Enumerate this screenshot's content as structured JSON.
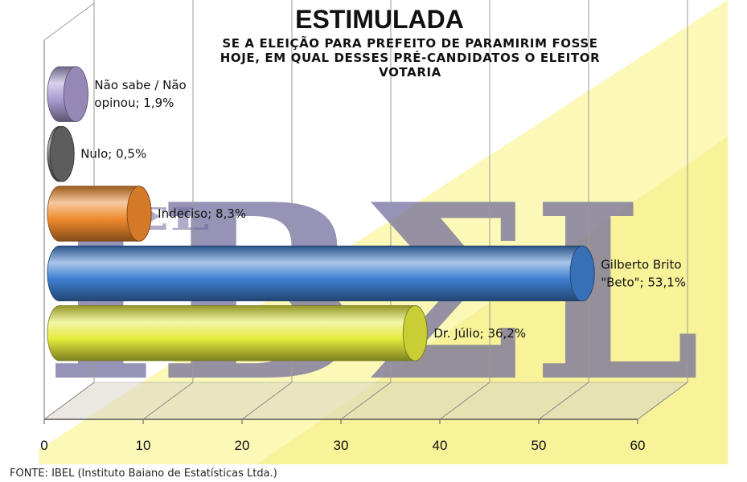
{
  "chart_data": {
    "type": "bar",
    "orientation": "horizontal",
    "title": "ESTIMULADA",
    "subtitle": "SE A ELEIÇÃO PARA PREFEITO DE PARAMIRIM FOSSE HOJE, EM QUAL DESSES PRÉ-CANDIDATOS O ELEITOR VOTARIA",
    "subtitle_lines": [
      "SE A ELEIÇÃO PARA PREFEITO DE PARAMIRIM FOSSE",
      "HOJE, EM QUAL DESSES PRÉ-CANDIDATOS O ELEITOR",
      "VOTARIA"
    ],
    "categories": [
      "Dr. Júlio",
      "Gilberto Brito \"Beto\"",
      "Indeciso",
      "Nulo",
      "Não sabe / Não opinou"
    ],
    "values": [
      36.2,
      53.1,
      8.3,
      0.5,
      1.9
    ],
    "data_labels": [
      [
        "Dr. Júlio; 36,2%"
      ],
      [
        "Gilberto Brito",
        "\"Beto\"; 53,1%"
      ],
      [
        "Indeciso; 8,3%"
      ],
      [
        "Nulo; 0,5%"
      ],
      [
        "Não sabe / Não",
        "opinou; 1,9%"
      ]
    ],
    "colors": [
      "#e4ea3c",
      "#3f7fd0",
      "#f08a2e",
      "#6a6a6a",
      "#a99bd0"
    ],
    "xlim": [
      0,
      60
    ],
    "xticks": [
      0,
      10,
      20,
      30,
      40,
      50,
      60
    ],
    "grid": true,
    "watermark": "IBΣL",
    "source": "FONTE: IBEL (Instituto Baiano de Estatísticas Ltda.)"
  }
}
